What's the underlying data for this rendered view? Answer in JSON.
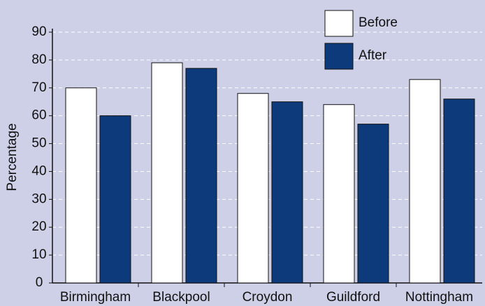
{
  "chart_data": {
    "type": "bar",
    "y_label": "Percentage",
    "categories": [
      "Birmingham",
      "Blackpool",
      "Croydon",
      "Guildford",
      "Nottingham"
    ],
    "series": [
      {
        "name": "Before",
        "color": "#ffffff",
        "values": [
          70,
          79,
          68,
          64,
          73
        ]
      },
      {
        "name": "After",
        "color": "#0d3a7a",
        "values": [
          60,
          77,
          65,
          57,
          66
        ]
      }
    ],
    "ylim": [
      0,
      90
    ],
    "yticks": [
      0,
      10,
      20,
      30,
      40,
      50,
      60,
      70,
      80,
      90
    ],
    "grid": true,
    "legend": "top-right"
  }
}
